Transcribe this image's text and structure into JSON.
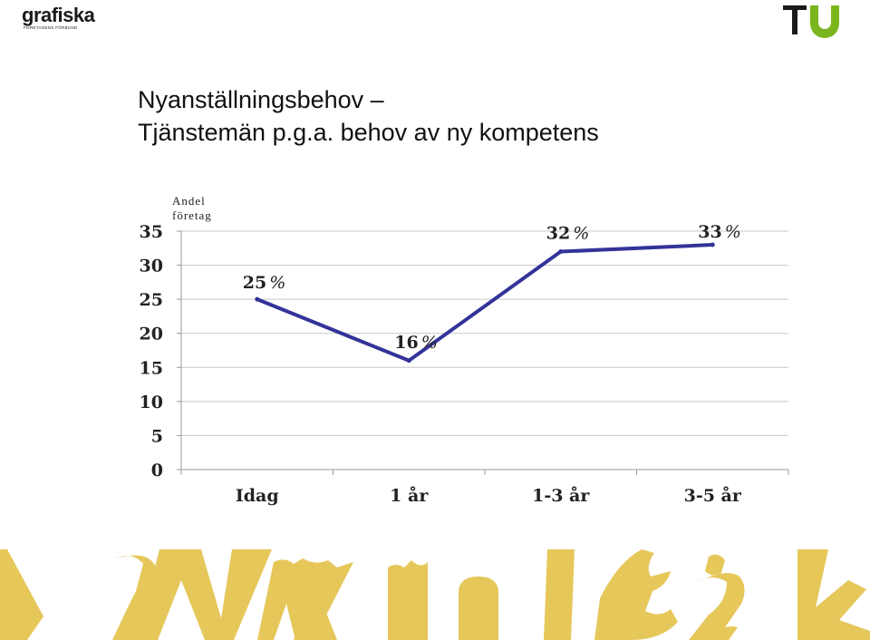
{
  "header": {
    "logo_left": {
      "word": "grafiska",
      "sub": "FÖRETAGENS FÖRBUND"
    },
    "logo_right": {
      "text": "TU",
      "colors": {
        "t": "#1a1a1a",
        "u": "#7ab51d"
      }
    }
  },
  "title": {
    "line1": "Nyanställningsbehov –",
    "line2": "Tjänstemän p.g.a. behov av ny kompetens"
  },
  "chart_data": {
    "type": "line",
    "ylabel_line1": "Andel",
    "ylabel_line2": "företag",
    "categories": [
      "Idag",
      "1 år",
      "1-3 år",
      "3-5 år"
    ],
    "values": [
      25,
      16,
      32,
      33
    ],
    "data_labels": [
      "25",
      "16",
      "32",
      "33"
    ],
    "unit": "%",
    "yticks": [
      0,
      5,
      10,
      15,
      20,
      25,
      30,
      35
    ],
    "ylim": [
      0,
      35
    ],
    "grid": true,
    "line_color": "#333399"
  },
  "banner": {
    "color": "#e6c75a"
  }
}
